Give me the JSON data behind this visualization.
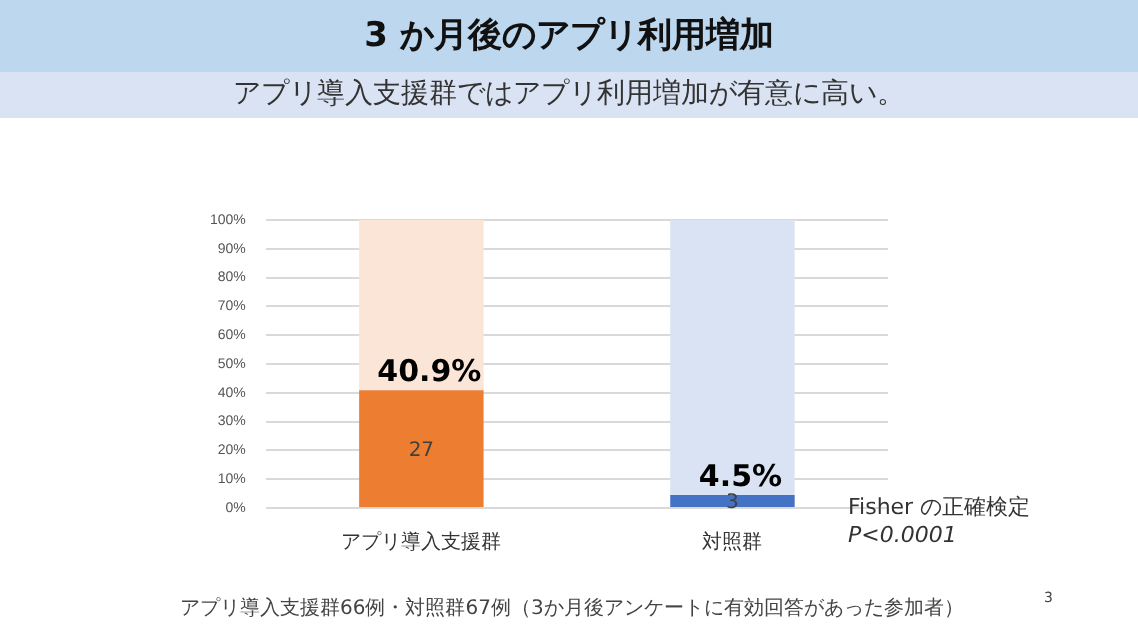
{
  "chart_data": {
    "type": "bar",
    "title": "3 か月後のアプリ利用増加",
    "subtitle": "アプリ導入支援群ではアプリ利用増加が有意に高い。",
    "categories": [
      "アプリ導入支援群",
      "対照群"
    ],
    "stacked": true,
    "series": [
      {
        "colors": [
          "#ed7d31",
          "#4472c4"
        ],
        "values": [
          40.9,
          4.5
        ],
        "value_labels": [
          "40.9%",
          "4.5%"
        ]
      },
      {
        "colors": [
          "#fbe5d6",
          "#dae3f3"
        ],
        "values": [
          59.1,
          95.5
        ]
      }
    ],
    "ylim": [
      0,
      100
    ],
    "yticks": [
      {
        "value": 0,
        "label": "0%"
      },
      {
        "value": 10,
        "label": "10%"
      },
      {
        "value": 20,
        "label": "20%"
      },
      {
        "value": 30,
        "label": "30%"
      },
      {
        "value": 40,
        "label": "40%"
      },
      {
        "value": 50,
        "label": "50%"
      },
      {
        "value": 60,
        "label": "60%"
      },
      {
        "value": 70,
        "label": "70%"
      },
      {
        "value": 80,
        "label": "80%"
      },
      {
        "value": 90,
        "label": "90%"
      },
      {
        "value": 100,
        "label": "100%"
      }
    ],
    "grid": "y",
    "legend": false,
    "annotations": [
      "27",
      "3",
      "Fisher の正確検定",
      "P<0.0001",
      "アプリ導入支援群66例・対照群67例（3か月後アンケートに有効回答があった参加者）",
      "3"
    ]
  }
}
